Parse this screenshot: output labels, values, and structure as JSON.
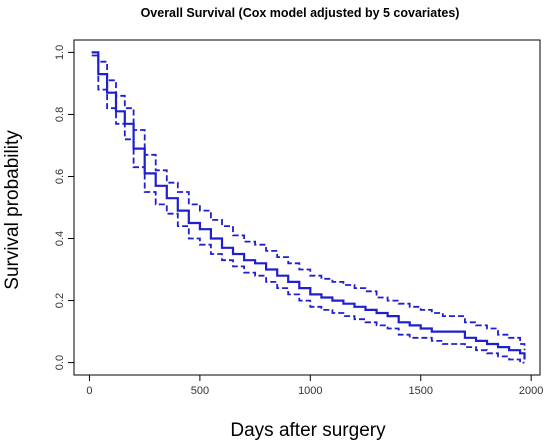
{
  "chart_data": {
    "type": "line",
    "title": "Overall Survival (Cox model adjusted by 5 covariates)",
    "xlabel": "Days after surgery",
    "ylabel": "Survival probability",
    "xlim": [
      -70,
      2040
    ],
    "ylim": [
      -0.04,
      1.04
    ],
    "x_ticks": [
      0,
      500,
      1000,
      1500,
      2000
    ],
    "y_ticks": [
      0.0,
      0.2,
      0.4,
      0.6,
      0.8,
      1.0
    ],
    "legend": "none",
    "grid": false,
    "color": "#1f1fd0",
    "x": [
      10,
      40,
      80,
      120,
      160,
      200,
      250,
      300,
      350,
      400,
      450,
      500,
      550,
      600,
      650,
      700,
      750,
      800,
      850,
      900,
      950,
      1000,
      1050,
      1100,
      1150,
      1200,
      1250,
      1300,
      1350,
      1400,
      1450,
      1500,
      1550,
      1600,
      1650,
      1700,
      1750,
      1800,
      1850,
      1900,
      1950,
      1970
    ],
    "series": [
      {
        "style": "solid",
        "values": [
          1.0,
          0.93,
          0.87,
          0.81,
          0.77,
          0.69,
          0.61,
          0.57,
          0.53,
          0.49,
          0.45,
          0.43,
          0.4,
          0.37,
          0.35,
          0.33,
          0.32,
          0.3,
          0.28,
          0.26,
          0.24,
          0.22,
          0.21,
          0.2,
          0.19,
          0.18,
          0.17,
          0.16,
          0.15,
          0.13,
          0.12,
          0.11,
          0.1,
          0.1,
          0.1,
          0.08,
          0.07,
          0.06,
          0.05,
          0.04,
          0.03,
          0.01
        ]
      },
      {
        "style": "dashed",
        "values": [
          1.0,
          0.97,
          0.91,
          0.86,
          0.82,
          0.75,
          0.67,
          0.62,
          0.58,
          0.55,
          0.51,
          0.49,
          0.46,
          0.44,
          0.41,
          0.39,
          0.38,
          0.36,
          0.34,
          0.32,
          0.3,
          0.28,
          0.27,
          0.26,
          0.25,
          0.24,
          0.23,
          0.21,
          0.2,
          0.19,
          0.18,
          0.17,
          0.16,
          0.15,
          0.15,
          0.13,
          0.12,
          0.11,
          0.09,
          0.08,
          0.06,
          0.04
        ]
      },
      {
        "style": "dashed",
        "values": [
          0.99,
          0.88,
          0.82,
          0.77,
          0.72,
          0.63,
          0.55,
          0.51,
          0.48,
          0.44,
          0.4,
          0.38,
          0.35,
          0.33,
          0.31,
          0.29,
          0.28,
          0.26,
          0.24,
          0.22,
          0.2,
          0.18,
          0.17,
          0.16,
          0.15,
          0.14,
          0.13,
          0.12,
          0.11,
          0.09,
          0.08,
          0.08,
          0.07,
          0.06,
          0.06,
          0.05,
          0.04,
          0.03,
          0.02,
          0.01,
          0.0,
          0.0
        ]
      }
    ]
  }
}
